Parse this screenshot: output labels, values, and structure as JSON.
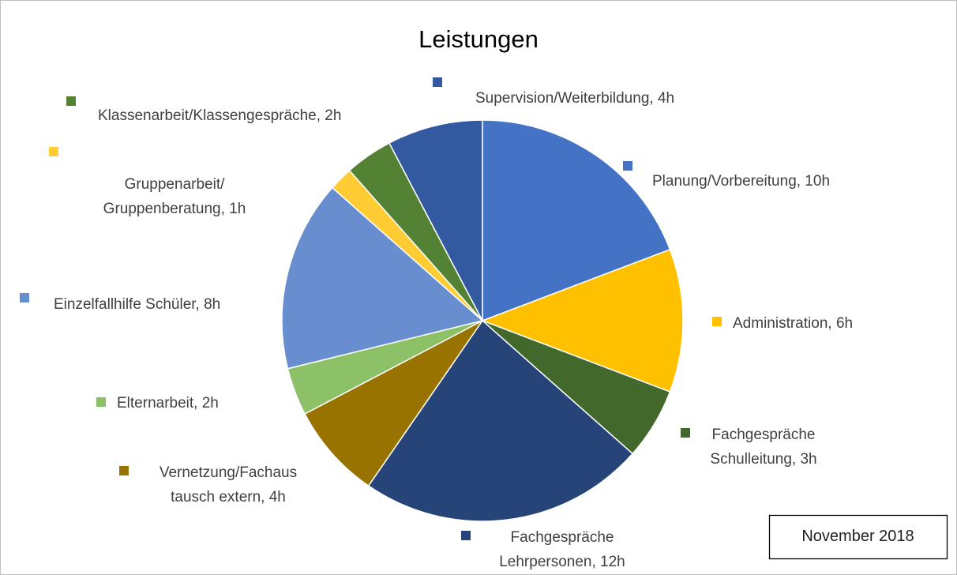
{
  "chart_data": {
    "type": "pie",
    "title": "Leistungen",
    "annotation": "November 2018",
    "values": [
      10,
      6,
      3,
      12,
      4,
      2,
      8,
      1,
      2,
      4
    ],
    "value_labels": [
      "Planung/Vorbereitung, 10h",
      "Administration, 6h",
      "Fachgespräche\nSchulleitung, 3h",
      "Fachgespräche\nLehrpersonen, 12h",
      "Vernetzung/Fachaus\ntausch extern, 4h",
      "Elternarbeit, 2h",
      "Einzelfallhilfe Schüler, 8h",
      "Gruppenarbeit/\nGruppenberatung, 1h",
      "Klassenarbeit/Klassengespräche, 2h",
      "Supervision/Weiterbildung, 4h"
    ],
    "colors": [
      "#4472c4",
      "#ffc000",
      "#43682b",
      "#264478",
      "#997300",
      "#8cc168",
      "#698ed0",
      "#ffcd33",
      "#548235",
      "#335aa1"
    ]
  }
}
